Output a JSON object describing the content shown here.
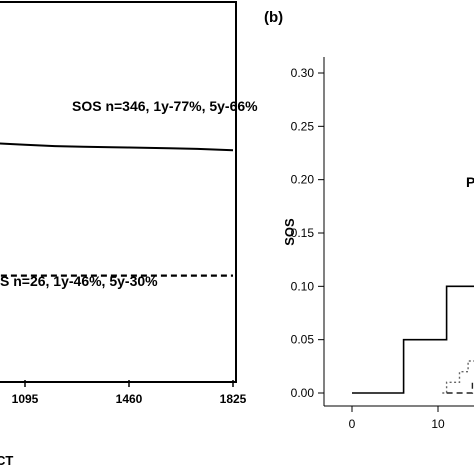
{
  "chart_data": [
    {
      "panel": "left",
      "type": "line",
      "xlabel": "CT",
      "x_ticks": [
        1095,
        1460,
        1825
      ],
      "xlim": [
        800,
        1825
      ],
      "ylim": [
        0,
        1
      ],
      "series": [
        {
          "name": "SOS",
          "annotation": "SOS n=346, 1y-77%, 5y-66%",
          "style": "solid",
          "x": [
            800,
            900,
            1000,
            1095,
            1200,
            1300,
            1400,
            1460,
            1600,
            1700,
            1825
          ],
          "y": [
            0.686,
            0.683,
            0.68,
            0.676,
            0.672,
            0.67,
            0.669,
            0.668,
            0.666,
            0.664,
            0.66
          ]
        },
        {
          "name": "S",
          "annotation": "S n=26, 1y-46%, 5y-30%",
          "style": "dashed",
          "x": [
            800,
            1825
          ],
          "y": [
            0.3,
            0.3
          ]
        }
      ]
    },
    {
      "panel": "right",
      "panel_label": "(b)",
      "type": "line",
      "ylabel": "SOS",
      "x_ticks": [
        "0",
        "10"
      ],
      "xlim": [
        0,
        20
      ],
      "y_ticks": [
        "0.00",
        "0.05",
        "0.10",
        "0.15",
        "0.20",
        "0.25",
        "0.30"
      ],
      "ylim": [
        -0.01,
        0.325
      ],
      "truncated_label": "P",
      "series": [
        {
          "style": "solid",
          "x": [
            0,
            6,
            6,
            11,
            11,
            20
          ],
          "y": [
            0,
            0,
            0.05,
            0.05,
            0.1,
            0.1
          ]
        },
        {
          "style": "dotted",
          "x": [
            10.5,
            11,
            11,
            12.5,
            12.5,
            13.5,
            13.5,
            14.5,
            14.5,
            20
          ],
          "y": [
            0,
            0,
            0.01,
            0.01,
            0.02,
            0.02,
            0.03,
            0.03,
            0.04,
            0.04
          ]
        },
        {
          "style": "dashed",
          "x": [
            11,
            14,
            14,
            20
          ],
          "y": [
            0,
            0,
            0.01,
            0.01
          ]
        }
      ]
    }
  ]
}
